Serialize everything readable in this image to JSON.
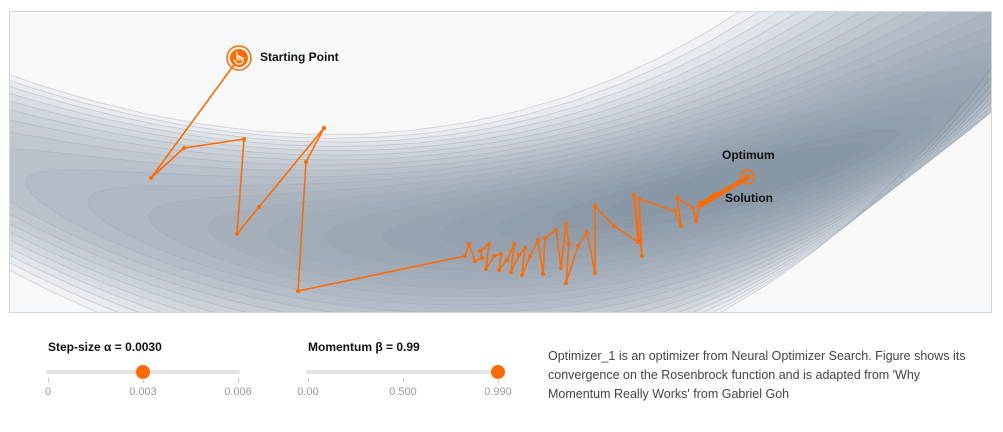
{
  "plot": {
    "annotations": {
      "start": "Starting Point",
      "optimum": "Optimum",
      "solution": "Solution"
    },
    "colors": {
      "path": "#ff6b00",
      "contour_fill": "#44617e",
      "contour_line": "#9aa6b2",
      "background": "#f7f8fa"
    }
  },
  "controls": {
    "step_size": {
      "label": "Step-size α = 0.0030",
      "value": 0.003,
      "min": 0,
      "max": 0.006,
      "ticks": [
        "0",
        "0.003",
        "0.006"
      ]
    },
    "momentum": {
      "label": "Momentum β = 0.99",
      "value": 0.99,
      "min": 0,
      "max": 0.99,
      "ticks": [
        "0.00",
        "0.500",
        "0.990"
      ]
    }
  },
  "caption": "Optimizer_1 is an optimizer from Neural Optimizer Search. Figure shows its convergence on the Rosenbrock function and is adapted from 'Why Momentum Really Works' from Gabriel Goh"
}
